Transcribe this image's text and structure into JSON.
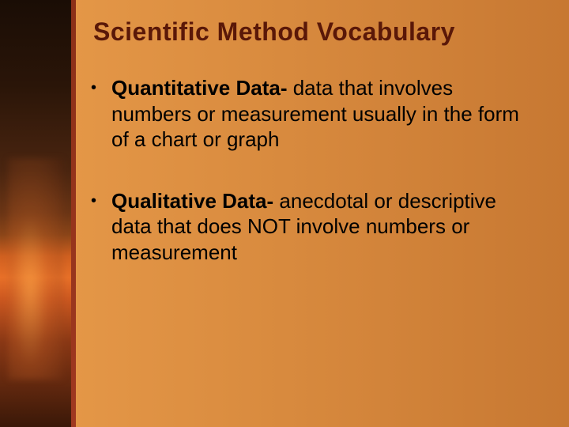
{
  "slide": {
    "title": "Scientific Method Vocabulary",
    "title_color": "#5a1808",
    "title_fontsize": 32,
    "background": {
      "main_gradient_start": "#e89b4a",
      "main_gradient_mid": "#d88a3e",
      "main_gradient_end": "#c77832",
      "left_strip_width": 90,
      "accent_bar_color": "#8b3018"
    },
    "bullets": [
      {
        "term": "Quantitative Data-",
        "definition": " data that involves numbers or measurement usually in the form of a chart or graph"
      },
      {
        "term": "Qualitative Data- ",
        "definition": "anecdotal or descriptive data that does NOT involve numbers or measurement"
      }
    ],
    "body_fontsize": 26,
    "body_color": "#000000",
    "bullet_marker": "•"
  }
}
